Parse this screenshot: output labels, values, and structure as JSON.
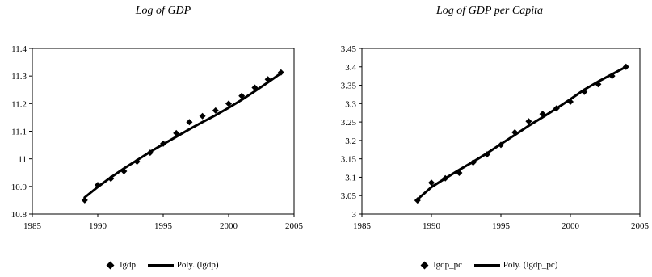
{
  "chart_data": [
    {
      "type": "line",
      "title": "Log of GDP",
      "xlabel": "",
      "ylabel": "",
      "xlim": [
        1985,
        2005
      ],
      "ylim": [
        10.8,
        11.4
      ],
      "x_ticks": [
        "1985",
        "1990",
        "1995",
        "2000",
        "2005"
      ],
      "y_ticks": [
        "10.8",
        "10.9",
        "11",
        "11.1",
        "11.2",
        "11.3",
        "11.4"
      ],
      "grid": false,
      "legend_position": "bottom",
      "series": [
        {
          "name": "lgdp",
          "style": "markers",
          "x": [
            1989,
            1990,
            1991,
            1992,
            1993,
            1994,
            1995,
            1996,
            1997,
            1998,
            1999,
            2000,
            2001,
            2002,
            2003,
            2004
          ],
          "y": [
            10.85,
            10.905,
            10.928,
            10.955,
            10.99,
            11.022,
            11.055,
            11.093,
            11.133,
            11.155,
            11.175,
            11.2,
            11.228,
            11.258,
            11.288,
            11.313
          ]
        },
        {
          "name": "Poly. (lgdp)",
          "style": "line",
          "x": [
            1989,
            1990,
            1991,
            1992,
            1993,
            1994,
            1995,
            1996,
            1997,
            1998,
            1999,
            2000,
            2001,
            2002,
            2003,
            2004
          ],
          "y": [
            10.86,
            10.898,
            10.933,
            10.965,
            10.995,
            11.025,
            11.053,
            11.08,
            11.107,
            11.133,
            11.158,
            11.185,
            11.214,
            11.245,
            11.277,
            11.31
          ]
        }
      ],
      "legend": [
        "lgdp",
        "Poly. (lgdp)"
      ]
    },
    {
      "type": "line",
      "title": "Log of GDP per Capita",
      "xlabel": "",
      "ylabel": "",
      "xlim": [
        1985,
        2005
      ],
      "ylim": [
        3,
        3.45
      ],
      "x_ticks": [
        "1985",
        "1990",
        "1995",
        "2000",
        "2005"
      ],
      "y_ticks": [
        "3",
        "3.05",
        "3.1",
        "3.15",
        "3.2",
        "3.25",
        "3.3",
        "3.35",
        "3.4",
        "3.45"
      ],
      "grid": false,
      "legend_position": "bottom",
      "series": [
        {
          "name": "lgdp_pc",
          "style": "markers",
          "x": [
            1989,
            1990,
            1991,
            1992,
            1993,
            1994,
            1995,
            1996,
            1997,
            1998,
            1999,
            2000,
            2001,
            2002,
            2003,
            2004
          ],
          "y": [
            3.037,
            3.085,
            3.097,
            3.112,
            3.14,
            3.162,
            3.188,
            3.222,
            3.252,
            3.272,
            3.287,
            3.305,
            3.332,
            3.353,
            3.375,
            3.4
          ]
        },
        {
          "name": "Poly. (lgdp_pc)",
          "style": "line",
          "x": [
            1989,
            1990,
            1991,
            1992,
            1993,
            1994,
            1995,
            1996,
            1997,
            1998,
            1999,
            2000,
            2001,
            2002,
            2003,
            2004
          ],
          "y": [
            3.04,
            3.073,
            3.097,
            3.12,
            3.142,
            3.165,
            3.19,
            3.215,
            3.24,
            3.263,
            3.287,
            3.312,
            3.338,
            3.36,
            3.38,
            3.4
          ]
        }
      ],
      "legend": [
        "lgdp_pc",
        "Poly. (lgdp_pc)"
      ]
    }
  ]
}
